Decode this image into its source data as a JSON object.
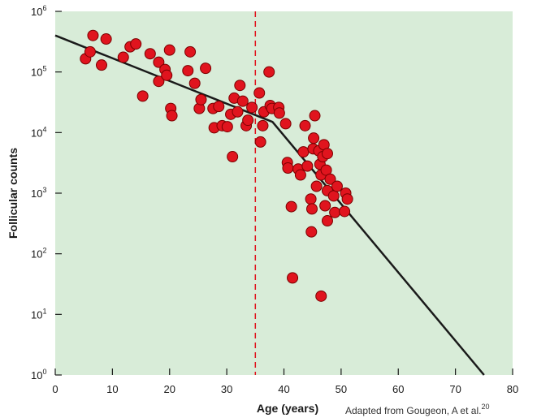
{
  "chart_data": {
    "type": "scatter",
    "ylabel": "Follicular counts",
    "xlabel": "Age (years)",
    "citation": "Adapted from Gougeon, A et al.",
    "citation_ref": "20",
    "x_ticks": [
      "0",
      "10",
      "20",
      "30",
      "40",
      "50",
      "60",
      "70",
      "80"
    ],
    "y_ticks": [
      {
        "base": "10",
        "exp": "0"
      },
      {
        "base": "10",
        "exp": "1"
      },
      {
        "base": "10",
        "exp": "2"
      },
      {
        "base": "10",
        "exp": "3"
      },
      {
        "base": "10",
        "exp": "4"
      },
      {
        "base": "10",
        "exp": "5"
      },
      {
        "base": "10",
        "exp": "6"
      }
    ],
    "xlim": [
      0,
      80
    ],
    "ylim_log10": [
      0,
      6
    ],
    "y_scale": "log",
    "background_color": "#d8ecd8",
    "marker_color": "#e0141e",
    "marker_edge_color": "#7a0000",
    "line_color": "#1a1a1a",
    "reference_line": {
      "x": 35,
      "color": "#e0141e",
      "style": "dashed"
    },
    "fit_line": [
      {
        "x": 0,
        "y": 400000
      },
      {
        "x": 38,
        "y": 15000
      },
      {
        "x": 75,
        "y": 1
      }
    ],
    "points": [
      {
        "x": 5.3,
        "y": 165000
      },
      {
        "x": 6.1,
        "y": 215000
      },
      {
        "x": 6.6,
        "y": 400000
      },
      {
        "x": 8.1,
        "y": 130000
      },
      {
        "x": 8.9,
        "y": 350000
      },
      {
        "x": 11.9,
        "y": 175000
      },
      {
        "x": 13.1,
        "y": 260000
      },
      {
        "x": 14.1,
        "y": 290000
      },
      {
        "x": 15.3,
        "y": 40000
      },
      {
        "x": 16.6,
        "y": 200000
      },
      {
        "x": 18.1,
        "y": 70000
      },
      {
        "x": 18.1,
        "y": 145000
      },
      {
        "x": 19.2,
        "y": 110000
      },
      {
        "x": 19.5,
        "y": 88000
      },
      {
        "x": 20.0,
        "y": 230000
      },
      {
        "x": 20.2,
        "y": 25000
      },
      {
        "x": 20.4,
        "y": 19000
      },
      {
        "x": 23.2,
        "y": 105000
      },
      {
        "x": 23.6,
        "y": 215000
      },
      {
        "x": 24.4,
        "y": 65000
      },
      {
        "x": 25.2,
        "y": 25000
      },
      {
        "x": 25.5,
        "y": 35000
      },
      {
        "x": 26.3,
        "y": 115000
      },
      {
        "x": 27.6,
        "y": 25000
      },
      {
        "x": 27.8,
        "y": 12000
      },
      {
        "x": 28.6,
        "y": 27000
      },
      {
        "x": 29.2,
        "y": 13000
      },
      {
        "x": 30.1,
        "y": 12500
      },
      {
        "x": 30.7,
        "y": 20000
      },
      {
        "x": 31.0,
        "y": 4000
      },
      {
        "x": 31.3,
        "y": 37000
      },
      {
        "x": 31.9,
        "y": 22000
      },
      {
        "x": 32.3,
        "y": 60000
      },
      {
        "x": 32.8,
        "y": 33000
      },
      {
        "x": 33.4,
        "y": 13000
      },
      {
        "x": 33.7,
        "y": 16000
      },
      {
        "x": 34.4,
        "y": 26000
      },
      {
        "x": 35.7,
        "y": 45000
      },
      {
        "x": 35.9,
        "y": 7000
      },
      {
        "x": 36.3,
        "y": 13000
      },
      {
        "x": 36.5,
        "y": 22000
      },
      {
        "x": 37.4,
        "y": 100000
      },
      {
        "x": 37.6,
        "y": 28000
      },
      {
        "x": 37.9,
        "y": 25000
      },
      {
        "x": 39.1,
        "y": 26000
      },
      {
        "x": 39.2,
        "y": 21000
      },
      {
        "x": 40.3,
        "y": 14000
      },
      {
        "x": 40.6,
        "y": 3200
      },
      {
        "x": 40.7,
        "y": 2600
      },
      {
        "x": 41.3,
        "y": 600
      },
      {
        "x": 41.5,
        "y": 40
      },
      {
        "x": 42.5,
        "y": 2500
      },
      {
        "x": 42.9,
        "y": 2000
      },
      {
        "x": 43.4,
        "y": 4800
      },
      {
        "x": 43.7,
        "y": 13000
      },
      {
        "x": 44.1,
        "y": 2800
      },
      {
        "x": 44.7,
        "y": 800
      },
      {
        "x": 44.8,
        "y": 230
      },
      {
        "x": 44.9,
        "y": 550
      },
      {
        "x": 45.1,
        "y": 5400
      },
      {
        "x": 45.2,
        "y": 8100
      },
      {
        "x": 45.4,
        "y": 19000
      },
      {
        "x": 45.7,
        "y": 1300
      },
      {
        "x": 46.1,
        "y": 5000
      },
      {
        "x": 46.3,
        "y": 3000
      },
      {
        "x": 46.5,
        "y": 20
      },
      {
        "x": 46.5,
        "y": 2000
      },
      {
        "x": 46.8,
        "y": 4000
      },
      {
        "x": 47.0,
        "y": 6300
      },
      {
        "x": 47.2,
        "y": 620
      },
      {
        "x": 47.4,
        "y": 2400
      },
      {
        "x": 47.6,
        "y": 1100
      },
      {
        "x": 47.6,
        "y": 350
      },
      {
        "x": 47.6,
        "y": 4500
      },
      {
        "x": 48.1,
        "y": 1700
      },
      {
        "x": 48.7,
        "y": 900
      },
      {
        "x": 48.9,
        "y": 480
      },
      {
        "x": 49.3,
        "y": 1300
      },
      {
        "x": 50.6,
        "y": 500
      },
      {
        "x": 50.8,
        "y": 1000
      },
      {
        "x": 51.1,
        "y": 800
      }
    ]
  }
}
